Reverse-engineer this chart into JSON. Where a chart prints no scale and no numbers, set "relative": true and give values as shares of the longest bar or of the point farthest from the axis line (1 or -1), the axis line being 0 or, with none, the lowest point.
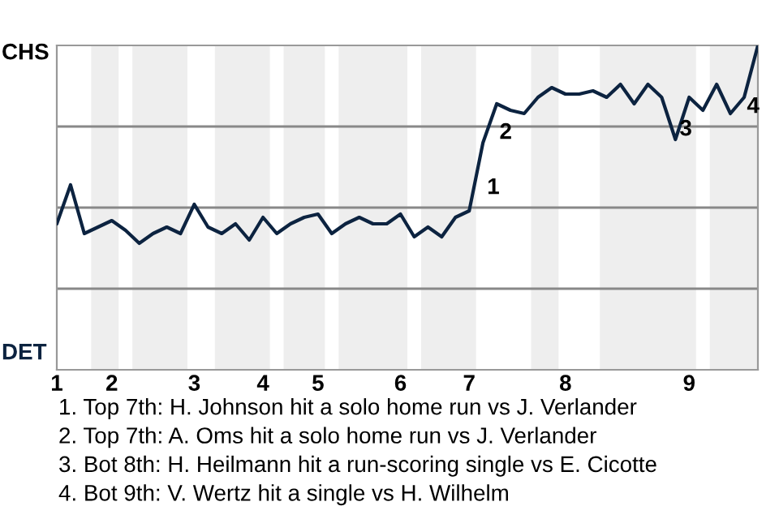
{
  "chart_data": {
    "type": "line",
    "categories": [
      "1",
      null,
      null,
      null,
      "2",
      null,
      null,
      null,
      null,
      null,
      "3",
      null,
      null,
      null,
      null,
      "4",
      null,
      null,
      null,
      "5",
      null,
      null,
      null,
      null,
      null,
      "6",
      null,
      null,
      null,
      null,
      "7",
      null,
      null,
      null,
      null,
      null,
      null,
      "8",
      null,
      null,
      null,
      null,
      null,
      null,
      null,
      null,
      "9",
      null,
      null,
      null,
      null,
      null
    ],
    "relative": true,
    "series": [
      {
        "color": "#0c2340",
        "values": [
          0.45,
          0.57,
          0.42,
          0.44,
          0.46,
          0.43,
          0.39,
          0.42,
          0.44,
          0.42,
          0.51,
          0.44,
          0.42,
          0.45,
          0.4,
          0.47,
          0.42,
          0.45,
          0.47,
          0.48,
          0.42,
          0.45,
          0.47,
          0.45,
          0.45,
          0.48,
          0.41,
          0.44,
          0.41,
          0.47,
          0.49,
          0.7,
          0.82,
          0.8,
          0.79,
          0.84,
          0.87,
          0.85,
          0.85,
          0.86,
          0.84,
          0.88,
          0.82,
          0.88,
          0.84,
          0.71,
          0.84,
          0.8,
          0.88,
          0.79,
          0.84,
          1.0
        ]
      }
    ],
    "annotations": [
      "CHS",
      "DET",
      "1",
      "2",
      "3",
      "4",
      "1. Top 7th: H. Johnson hit a solo home run vs J. Verlander",
      "2. Top 7th: A. Oms hit a solo home run vs J. Verlander",
      "3. Bot 8th: H. Heilmann hit a run-scoring single vs E. Cicotte",
      "4. Bot 9th: V. Wertz hit a single vs H. Wilhelm"
    ]
  }
}
